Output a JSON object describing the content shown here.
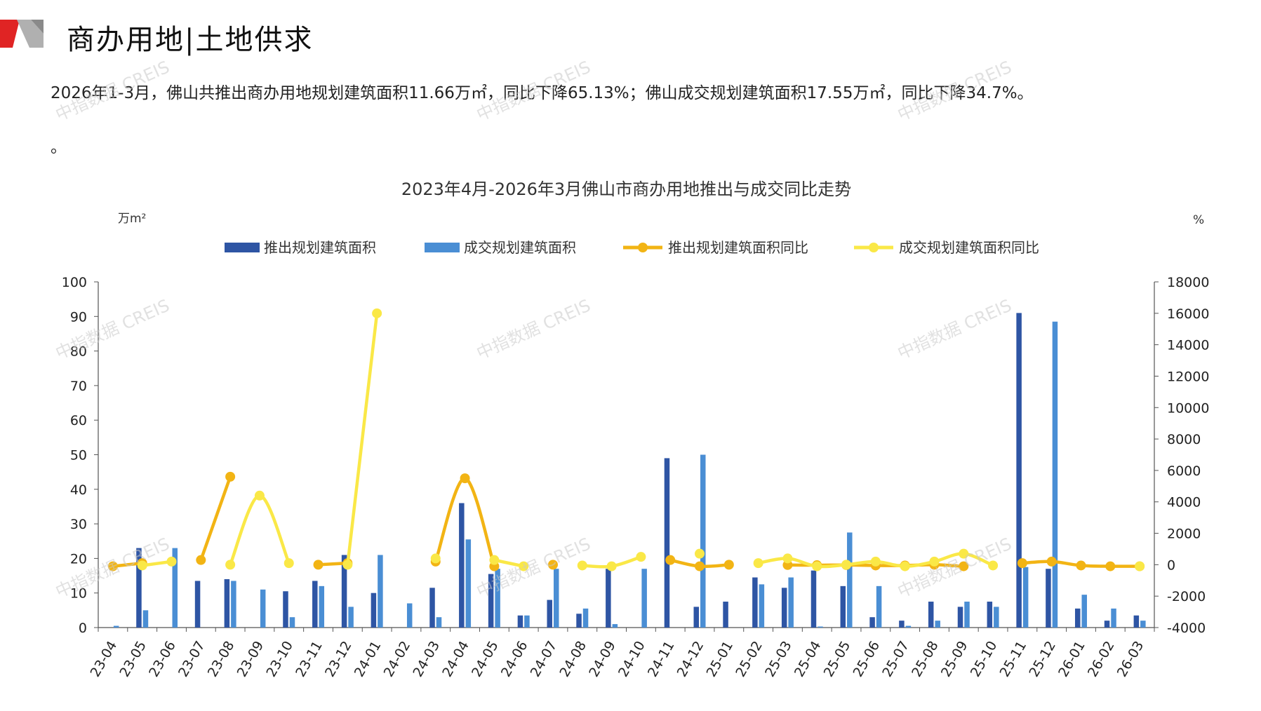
{
  "header": {
    "title": "商办用地|土地供求"
  },
  "summary": {
    "text": "2026年1-3月，佛山共推出商办用地规划建筑面积11.66万㎡，同比下降65.13%；佛山成交规划建筑面积17.55万㎡，同比下降34.7%。",
    "text2": "。"
  },
  "watermark": "中指数据 CREIS",
  "colors": {
    "bar1": "#2E55A4",
    "bar2": "#4A8ED4",
    "line1": "#F2B414",
    "line2": "#FAE847",
    "axis": "#555555"
  },
  "chart_data": {
    "type": "bar",
    "title": "2023年4月-2026年3月佛山市商办用地推出与成交同比走势",
    "ylabel_left": "万m²",
    "ylabel_right": "%",
    "ylim_left": [
      0,
      100
    ],
    "ylim_right": [
      -4000,
      18000
    ],
    "yticks_left": [
      0,
      10,
      20,
      30,
      40,
      50,
      60,
      70,
      80,
      90,
      100
    ],
    "yticks_right": [
      -4000,
      -2000,
      0,
      2000,
      4000,
      6000,
      8000,
      10000,
      12000,
      14000,
      16000,
      18000
    ],
    "legend_position": "top",
    "categories": [
      "23-04",
      "23-05",
      "23-06",
      "23-07",
      "23-08",
      "23-09",
      "23-10",
      "23-11",
      "23-12",
      "24-01",
      "24-02",
      "24-03",
      "24-04",
      "24-05",
      "24-06",
      "24-07",
      "24-08",
      "24-09",
      "24-10",
      "24-11",
      "24-12",
      "25-01",
      "25-02",
      "25-03",
      "25-04",
      "25-05",
      "25-06",
      "25-07",
      "25-08",
      "25-09",
      "25-10",
      "25-11",
      "25-12",
      "26-01",
      "26-02",
      "26-03"
    ],
    "series": [
      {
        "name": "推出规划建筑面积",
        "kind": "bar",
        "axis": "left",
        "values": [
          0,
          23,
          0,
          13.5,
          14,
          0,
          10.5,
          13.5,
          21,
          10,
          0,
          11.5,
          36,
          15.5,
          3.5,
          8,
          4,
          17,
          0,
          49,
          6,
          7.5,
          14.5,
          11.5,
          16.5,
          12,
          3,
          2,
          7.5,
          6,
          7.5,
          91,
          17,
          5.5,
          2,
          3.5
        ]
      },
      {
        "name": "成交规划建筑面积",
        "kind": "bar",
        "axis": "left",
        "values": [
          0.5,
          5,
          23,
          0,
          13.5,
          11,
          3,
          12,
          6,
          21,
          7,
          3,
          25.5,
          17,
          3.5,
          17,
          5.5,
          1,
          17,
          0,
          50,
          0,
          12.5,
          14.5,
          0.3,
          27.5,
          12,
          0.5,
          2,
          7.5,
          6,
          17.5,
          88.5,
          9.5,
          5.5,
          2
        ]
      },
      {
        "name": "推出规划建筑面积同比",
        "kind": "line",
        "axis": "right",
        "values": [
          -100,
          100,
          null,
          300,
          5600,
          null,
          null,
          0,
          100,
          null,
          null,
          200,
          5500,
          -100,
          null,
          0,
          null,
          null,
          null,
          300,
          -100,
          0,
          null,
          -20,
          -30,
          -20,
          -50,
          -50,
          0,
          -100,
          null,
          100,
          200,
          -50,
          -100,
          -100
        ]
      },
      {
        "name": "成交规划建筑面积同比",
        "kind": "line",
        "axis": "right",
        "values": [
          null,
          -50,
          200,
          null,
          0,
          4400,
          100,
          null,
          0,
          16000,
          null,
          400,
          null,
          300,
          -100,
          null,
          -50,
          -100,
          500,
          null,
          700,
          null,
          100,
          400,
          -100,
          0,
          200,
          -100,
          200,
          700,
          -50,
          null,
          null,
          null,
          null,
          -100
        ]
      }
    ]
  }
}
